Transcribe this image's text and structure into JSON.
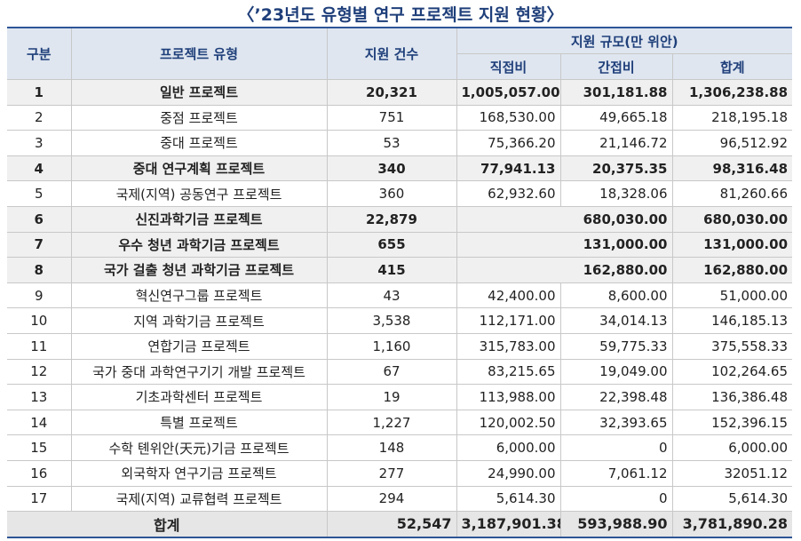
{
  "title": "〈’23년도 유형별 연구 프로젝트 지원 현황〉",
  "table": {
    "header": {
      "no": "구분",
      "name": "프로젝트 유형",
      "count": "지원 건수",
      "scale": "지원 규모(만 위안)",
      "direct": "직접비",
      "indirect": "간접비",
      "total": "합계"
    },
    "rows": [
      {
        "no": "1",
        "name": "일반 프로젝트",
        "count": "20,321",
        "direct": "1,005,057.00",
        "indirect": "301,181.88",
        "total": "1,306,238.88",
        "highlight": true
      },
      {
        "no": "2",
        "name": "중점 프로젝트",
        "count": "751",
        "direct": "168,530.00",
        "indirect": "49,665.18",
        "total": "218,195.18"
      },
      {
        "no": "3",
        "name": "중대 프로젝트",
        "count": "53",
        "direct": "75,366.20",
        "indirect": "21,146.72",
        "total": "96,512.92"
      },
      {
        "no": "4",
        "name": "중대 연구계획 프로젝트",
        "count": "340",
        "direct": "77,941.13",
        "indirect": "20,375.35",
        "total": "98,316.48",
        "highlight": true
      },
      {
        "no": "5",
        "name": "국제(지역) 공동연구 프로젝트",
        "count": "360",
        "direct": "62,932.60",
        "indirect": "18,328.06",
        "total": "81,260.66"
      },
      {
        "no": "6",
        "name": "신진과학기금 프로젝트",
        "count": "22,879",
        "direct_indirect": "680,030.00",
        "total": "680,030.00",
        "highlight": true
      },
      {
        "no": "7",
        "name": "우수 청년 과학기금 프로젝트",
        "count": "655",
        "direct_indirect": "131,000.00",
        "total": "131,000.00",
        "highlight": true
      },
      {
        "no": "8",
        "name": "국가 걸출 청년 과학기금 프로젝트",
        "count": "415",
        "direct_indirect": "162,880.00",
        "total": "162,880.00",
        "highlight": true
      },
      {
        "no": "9",
        "name": "혁신연구그룹 프로젝트",
        "count": "43",
        "direct": "42,400.00",
        "indirect": "8,600.00",
        "total": "51,000.00"
      },
      {
        "no": "10",
        "name": "지역 과학기금 프로젝트",
        "count": "3,538",
        "direct": "112,171.00",
        "indirect": "34,014.13",
        "total": "146,185.13"
      },
      {
        "no": "11",
        "name": "연합기금 프로젝트",
        "count": "1,160",
        "direct": "315,783.00",
        "indirect": "59,775.33",
        "total": "375,558.33"
      },
      {
        "no": "12",
        "name": "국가 중대 과학연구기기 개발 프로젝트",
        "count": "67",
        "direct": "83,215.65",
        "indirect": "19,049.00",
        "total": "102,264.65"
      },
      {
        "no": "13",
        "name": "기초과학센터 프로젝트",
        "count": "19",
        "direct": "113,988.00",
        "indirect": "22,398.48",
        "total": "136,386.48"
      },
      {
        "no": "14",
        "name": "특별 프로젝트",
        "count": "1,227",
        "direct": "120,002.50",
        "indirect": "32,393.65",
        "total": "152,396.15"
      },
      {
        "no": "15",
        "name": "수학 톈위안(天元)기금 프로젝트",
        "count": "148",
        "direct": "6,000.00",
        "indirect": "0",
        "total": "6,000.00"
      },
      {
        "no": "16",
        "name": "외국학자 연구기금 프로젝트",
        "count": "277",
        "direct": "24,990.00",
        "indirect": "7,061.12",
        "total": "32051.12"
      },
      {
        "no": "17",
        "name": "국제(지역) 교류협력 프로젝트",
        "count": "294",
        "direct": "5,614.30",
        "indirect": "0",
        "total": "5,614.30"
      }
    ],
    "footer": {
      "label": "합계",
      "count": "52,547",
      "direct": "3,187,901.38",
      "indirect": "593,988.90",
      "total": "3,781,890.28"
    }
  }
}
